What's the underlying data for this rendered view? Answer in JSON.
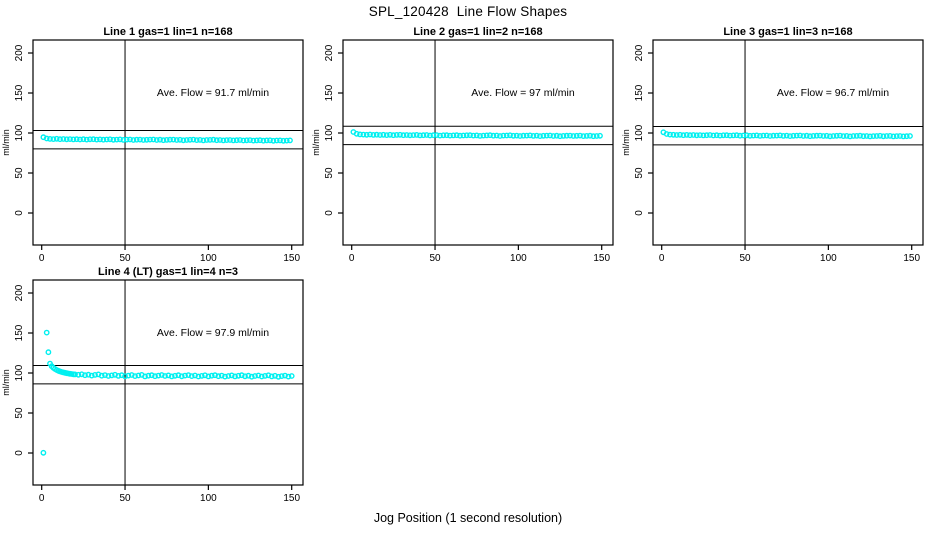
{
  "page": {
    "title": "SPL_120428  Line Flow Shapes",
    "xlabel": "Jog Position (1 second resolution)"
  },
  "chart_data": [
    {
      "type": "scatter",
      "panel": "top-left",
      "title": "Line 1 gas=1 lin=1 n=168",
      "annotation": "Ave. Flow =  91.7  ml/min",
      "ave_flow_ml_min": 91.7,
      "n": 168,
      "ylabel": "ml/min",
      "xlim": [
        0,
        155
      ],
      "ylim": [
        -20,
        215
      ],
      "x_ticks": [
        0,
        50,
        100,
        150
      ],
      "y_ticks": [
        0,
        50,
        100,
        150,
        200
      ],
      "vline_x": 50,
      "hlines": [
        80.2,
        103.2
      ],
      "marker_color": "#00F0F0",
      "grid": false,
      "points": [
        [
          1,
          94.8
        ],
        [
          3,
          93.1
        ],
        [
          5,
          92.6
        ],
        [
          7,
          92.4
        ],
        [
          9,
          92.7
        ],
        [
          11,
          92.2
        ],
        [
          13,
          92.5
        ],
        [
          15,
          92.1
        ],
        [
          17,
          92.4
        ],
        [
          19,
          92.0
        ],
        [
          21,
          92.3
        ],
        [
          23,
          91.9
        ],
        [
          25,
          92.2
        ],
        [
          27,
          91.8
        ],
        [
          29,
          92.1
        ],
        [
          31,
          92.3
        ],
        [
          33,
          91.7
        ],
        [
          35,
          92.0
        ],
        [
          37,
          91.6
        ],
        [
          39,
          91.9
        ],
        [
          41,
          92.1
        ],
        [
          43,
          91.5
        ],
        [
          45,
          91.8
        ],
        [
          47,
          92.0
        ],
        [
          49,
          91.4
        ],
        [
          51,
          91.7
        ],
        [
          53,
          91.9
        ],
        [
          55,
          91.3
        ],
        [
          57,
          91.6
        ],
        [
          59,
          91.8
        ],
        [
          61,
          91.2
        ],
        [
          63,
          91.5
        ],
        [
          65,
          91.7
        ],
        [
          67,
          91.9
        ],
        [
          69,
          91.3
        ],
        [
          71,
          91.6
        ],
        [
          73,
          91.0
        ],
        [
          75,
          91.4
        ],
        [
          77,
          91.6
        ],
        [
          79,
          91.8
        ],
        [
          81,
          91.2
        ],
        [
          83,
          91.5
        ],
        [
          85,
          90.9
        ],
        [
          87,
          91.3
        ],
        [
          89,
          91.5
        ],
        [
          91,
          91.7
        ],
        [
          93,
          91.1
        ],
        [
          95,
          91.4
        ],
        [
          97,
          90.8
        ],
        [
          99,
          91.2
        ],
        [
          101,
          91.4
        ],
        [
          103,
          91.6
        ],
        [
          105,
          91.0
        ],
        [
          107,
          91.3
        ],
        [
          109,
          90.7
        ],
        [
          111,
          91.1
        ],
        [
          113,
          91.3
        ],
        [
          115,
          90.7
        ],
        [
          117,
          91.0
        ],
        [
          119,
          91.2
        ],
        [
          121,
          90.6
        ],
        [
          123,
          90.9
        ],
        [
          125,
          91.1
        ],
        [
          127,
          90.5
        ],
        [
          129,
          90.8
        ],
        [
          131,
          91.0
        ],
        [
          133,
          90.4
        ],
        [
          135,
          90.7
        ],
        [
          137,
          90.9
        ],
        [
          139,
          90.3
        ],
        [
          141,
          90.6
        ],
        [
          143,
          90.8
        ],
        [
          145,
          90.2
        ],
        [
          147,
          90.5
        ],
        [
          149,
          90.7
        ]
      ]
    },
    {
      "type": "scatter",
      "panel": "top-middle",
      "title": "Line 2 gas=1 lin=2 n=168",
      "annotation": "Ave. Flow =  97  ml/min",
      "ave_flow_ml_min": 97,
      "n": 168,
      "ylabel": "ml/min",
      "xlim": [
        0,
        155
      ],
      "ylim": [
        -20,
        215
      ],
      "x_ticks": [
        0,
        50,
        100,
        150
      ],
      "y_ticks": [
        0,
        50,
        100,
        150,
        200
      ],
      "vline_x": 50,
      "hlines": [
        85.5,
        108.5
      ],
      "marker_color": "#00F0F0",
      "grid": false,
      "points": [
        [
          1,
          101.2
        ],
        [
          3,
          99.0
        ],
        [
          5,
          98.3
        ],
        [
          7,
          98.0
        ],
        [
          9,
          97.8
        ],
        [
          11,
          98.1
        ],
        [
          13,
          97.6
        ],
        [
          15,
          97.9
        ],
        [
          17,
          97.5
        ],
        [
          19,
          97.8
        ],
        [
          21,
          97.4
        ],
        [
          23,
          97.7
        ],
        [
          25,
          97.3
        ],
        [
          27,
          97.6
        ],
        [
          29,
          97.8
        ],
        [
          31,
          97.2
        ],
        [
          33,
          97.5
        ],
        [
          35,
          97.1
        ],
        [
          37,
          97.4
        ],
        [
          39,
          97.6
        ],
        [
          41,
          97.0
        ],
        [
          43,
          97.3
        ],
        [
          45,
          97.5
        ],
        [
          47,
          96.9
        ],
        [
          49,
          97.2
        ],
        [
          51,
          97.4
        ],
        [
          53,
          96.8
        ],
        [
          55,
          97.1
        ],
        [
          57,
          97.3
        ],
        [
          59,
          96.7
        ],
        [
          61,
          97.0
        ],
        [
          63,
          97.2
        ],
        [
          65,
          96.6
        ],
        [
          67,
          96.9
        ],
        [
          69,
          97.1
        ],
        [
          71,
          97.3
        ],
        [
          73,
          96.7
        ],
        [
          75,
          97.0
        ],
        [
          77,
          96.4
        ],
        [
          79,
          96.8
        ],
        [
          81,
          97.0
        ],
        [
          83,
          97.2
        ],
        [
          85,
          96.6
        ],
        [
          87,
          96.9
        ],
        [
          89,
          96.3
        ],
        [
          91,
          96.7
        ],
        [
          93,
          96.9
        ],
        [
          95,
          97.1
        ],
        [
          97,
          96.5
        ],
        [
          99,
          96.8
        ],
        [
          101,
          96.2
        ],
        [
          103,
          96.6
        ],
        [
          105,
          96.8
        ],
        [
          107,
          97.0
        ],
        [
          109,
          96.4
        ],
        [
          111,
          96.7
        ],
        [
          113,
          96.1
        ],
        [
          115,
          96.5
        ],
        [
          117,
          96.7
        ],
        [
          119,
          96.9
        ],
        [
          121,
          96.3
        ],
        [
          123,
          96.6
        ],
        [
          125,
          96.0
        ],
        [
          127,
          96.4
        ],
        [
          129,
          96.6
        ],
        [
          131,
          96.8
        ],
        [
          133,
          96.2
        ],
        [
          135,
          96.5
        ],
        [
          137,
          96.7
        ],
        [
          139,
          96.1
        ],
        [
          141,
          96.4
        ],
        [
          143,
          96.6
        ],
        [
          145,
          96.0
        ],
        [
          147,
          96.3
        ],
        [
          149,
          96.5
        ]
      ]
    },
    {
      "type": "scatter",
      "panel": "top-right",
      "title": "Line 3 gas=1 lin=3 n=168",
      "annotation": "Ave. Flow =  96.7  ml/min",
      "ave_flow_ml_min": 96.7,
      "n": 168,
      "ylabel": "ml/min",
      "xlim": [
        0,
        155
      ],
      "ylim": [
        -20,
        215
      ],
      "x_ticks": [
        0,
        50,
        100,
        150
      ],
      "y_ticks": [
        0,
        50,
        100,
        150,
        200
      ],
      "vline_x": 50,
      "hlines": [
        85.2,
        108.2
      ],
      "marker_color": "#00F0F0",
      "grid": false,
      "points": [
        [
          1,
          100.9
        ],
        [
          3,
          98.7
        ],
        [
          5,
          98.0
        ],
        [
          7,
          97.7
        ],
        [
          9,
          97.5
        ],
        [
          11,
          97.8
        ],
        [
          13,
          97.3
        ],
        [
          15,
          97.6
        ],
        [
          17,
          97.2
        ],
        [
          19,
          97.5
        ],
        [
          21,
          97.1
        ],
        [
          23,
          97.4
        ],
        [
          25,
          97.0
        ],
        [
          27,
          97.3
        ],
        [
          29,
          97.5
        ],
        [
          31,
          96.9
        ],
        [
          33,
          97.2
        ],
        [
          35,
          96.8
        ],
        [
          37,
          97.1
        ],
        [
          39,
          97.3
        ],
        [
          41,
          96.7
        ],
        [
          43,
          97.0
        ],
        [
          45,
          97.2
        ],
        [
          47,
          96.6
        ],
        [
          49,
          96.9
        ],
        [
          51,
          97.1
        ],
        [
          53,
          96.5
        ],
        [
          55,
          96.8
        ],
        [
          57,
          97.0
        ],
        [
          59,
          96.4
        ],
        [
          61,
          96.7
        ],
        [
          63,
          96.9
        ],
        [
          65,
          96.3
        ],
        [
          67,
          96.6
        ],
        [
          69,
          96.8
        ],
        [
          71,
          97.0
        ],
        [
          73,
          96.4
        ],
        [
          75,
          96.7
        ],
        [
          77,
          96.1
        ],
        [
          79,
          96.5
        ],
        [
          81,
          96.7
        ],
        [
          83,
          96.9
        ],
        [
          85,
          96.3
        ],
        [
          87,
          96.6
        ],
        [
          89,
          96.0
        ],
        [
          91,
          96.4
        ],
        [
          93,
          96.6
        ],
        [
          95,
          96.8
        ],
        [
          97,
          96.2
        ],
        [
          99,
          96.5
        ],
        [
          101,
          95.9
        ],
        [
          103,
          96.3
        ],
        [
          105,
          96.5
        ],
        [
          107,
          96.7
        ],
        [
          109,
          96.1
        ],
        [
          111,
          96.4
        ],
        [
          113,
          95.8
        ],
        [
          115,
          96.2
        ],
        [
          117,
          96.4
        ],
        [
          119,
          96.6
        ],
        [
          121,
          96.0
        ],
        [
          123,
          96.3
        ],
        [
          125,
          95.7
        ],
        [
          127,
          96.1
        ],
        [
          129,
          96.3
        ],
        [
          131,
          96.5
        ],
        [
          133,
          95.9
        ],
        [
          135,
          96.2
        ],
        [
          137,
          96.4
        ],
        [
          139,
          95.8
        ],
        [
          141,
          96.1
        ],
        [
          143,
          96.3
        ],
        [
          145,
          95.7
        ],
        [
          147,
          96.0
        ],
        [
          149,
          96.2
        ]
      ]
    },
    {
      "type": "scatter",
      "panel": "bottom-left",
      "title": "Line 4 (LT) gas=1 lin=4 n=3",
      "annotation": "Ave. Flow =  97.9  ml/min",
      "ave_flow_ml_min": 97.9,
      "n": 3,
      "ylabel": "ml/min",
      "xlim": [
        0,
        155
      ],
      "ylim": [
        -20,
        215
      ],
      "x_ticks": [
        0,
        50,
        100,
        150
      ],
      "y_ticks": [
        0,
        50,
        100,
        150,
        200
      ],
      "vline_x": 50,
      "hlines": [
        86.4,
        109.4
      ],
      "marker_color": "#00F0F0",
      "grid": false,
      "points": [
        [
          1,
          0.2
        ],
        [
          3,
          150.5
        ],
        [
          4,
          126.0
        ],
        [
          5,
          111.8
        ],
        [
          6,
          108.5
        ],
        [
          7,
          106.5
        ],
        [
          8,
          105.0
        ],
        [
          9,
          103.8
        ],
        [
          10,
          102.8
        ],
        [
          11,
          102.0
        ],
        [
          12,
          101.3
        ],
        [
          13,
          100.7
        ],
        [
          14,
          100.2
        ],
        [
          15,
          99.8
        ],
        [
          16,
          99.4
        ],
        [
          17,
          99.0
        ],
        [
          18,
          98.7
        ],
        [
          19,
          98.4
        ],
        [
          20,
          98.2
        ],
        [
          22,
          97.8
        ],
        [
          24,
          98.4
        ],
        [
          26,
          97.3
        ],
        [
          28,
          97.9
        ],
        [
          30,
          96.8
        ],
        [
          32,
          97.6
        ],
        [
          34,
          98.2
        ],
        [
          36,
          96.6
        ],
        [
          38,
          97.4
        ],
        [
          40,
          96.2
        ],
        [
          42,
          97.0
        ],
        [
          44,
          97.8
        ],
        [
          46,
          96.4
        ],
        [
          48,
          97.2
        ],
        [
          50,
          95.9
        ],
        [
          52,
          96.7
        ],
        [
          54,
          97.5
        ],
        [
          56,
          96.1
        ],
        [
          58,
          96.9
        ],
        [
          60,
          97.6
        ],
        [
          62,
          95.8
        ],
        [
          64,
          96.6
        ],
        [
          66,
          97.3
        ],
        [
          68,
          96.0
        ],
        [
          70,
          96.8
        ],
        [
          72,
          97.5
        ],
        [
          74,
          96.2
        ],
        [
          76,
          97.0
        ],
        [
          78,
          95.7
        ],
        [
          80,
          96.5
        ],
        [
          82,
          97.2
        ],
        [
          84,
          95.9
        ],
        [
          86,
          96.7
        ],
        [
          88,
          97.4
        ],
        [
          90,
          96.1
        ],
        [
          92,
          96.9
        ],
        [
          94,
          95.6
        ],
        [
          96,
          96.4
        ],
        [
          98,
          97.1
        ],
        [
          100,
          95.8
        ],
        [
          102,
          96.6
        ],
        [
          104,
          97.3
        ],
        [
          106,
          96.0
        ],
        [
          108,
          96.8
        ],
        [
          110,
          95.5
        ],
        [
          112,
          96.3
        ],
        [
          114,
          97.0
        ],
        [
          116,
          95.7
        ],
        [
          118,
          96.5
        ],
        [
          120,
          97.2
        ],
        [
          122,
          95.9
        ],
        [
          124,
          96.6
        ],
        [
          126,
          95.4
        ],
        [
          128,
          96.2
        ],
        [
          130,
          96.9
        ],
        [
          132,
          95.6
        ],
        [
          134,
          96.4
        ],
        [
          136,
          97.1
        ],
        [
          138,
          95.8
        ],
        [
          140,
          96.5
        ],
        [
          142,
          95.3
        ],
        [
          144,
          96.1
        ],
        [
          146,
          96.8
        ],
        [
          148,
          95.5
        ],
        [
          150,
          96.3
        ]
      ]
    }
  ]
}
